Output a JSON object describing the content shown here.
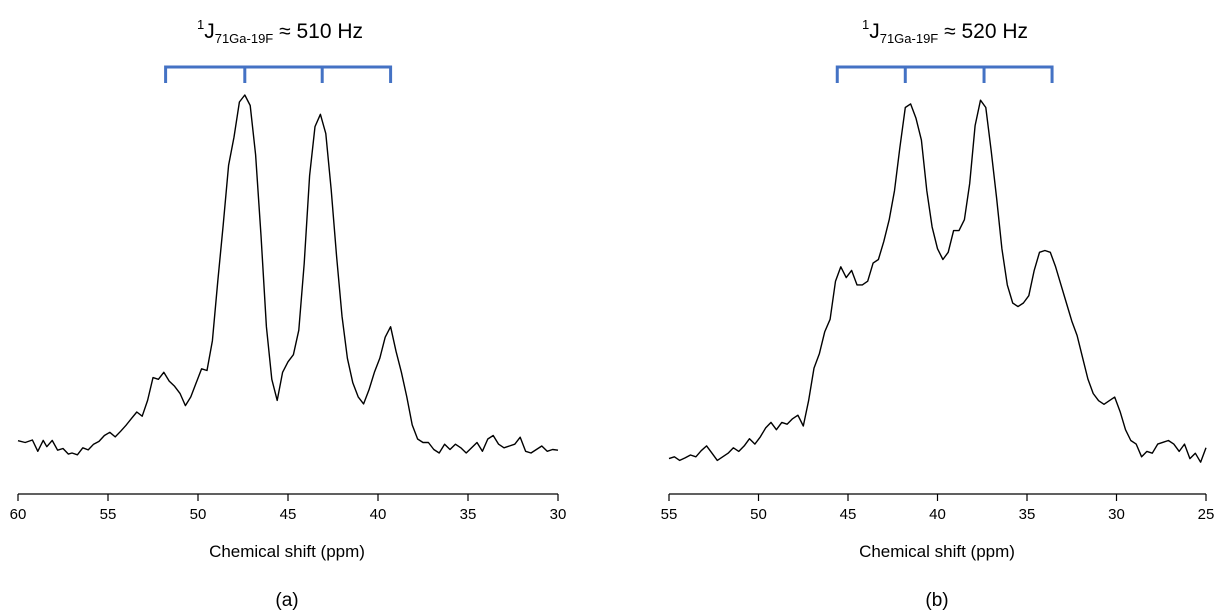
{
  "colors": {
    "trace": "#000000",
    "multiplet": "#4472c4",
    "axis": "#000000"
  },
  "chart_data": [
    {
      "type": "line",
      "panel_label": "(a)",
      "xlabel": "Chemical shift (ppm)",
      "ylabel": "",
      "xlim": [
        60,
        30
      ],
      "x_reversed": true,
      "xticks": [
        60,
        55,
        50,
        45,
        40,
        35,
        30
      ],
      "xtick_labels": [
        "60",
        "55",
        "50",
        "45",
        "40",
        "35",
        "30"
      ],
      "grid": false,
      "annotation": {
        "sup": "1",
        "main": "J",
        "sub": "71Ga-19F",
        "rest": " ≈ 510 Hz"
      },
      "multiplet_lines": [
        51.8,
        47.4,
        43.1,
        39.3
      ],
      "series": [
        {
          "x": [
            60.0,
            59.6,
            59.2,
            58.9,
            58.6,
            58.4,
            58.1,
            57.8,
            57.5,
            57.2,
            57.0,
            56.7,
            56.4,
            56.1,
            55.8,
            55.5,
            55.2,
            54.9,
            54.6,
            54.3,
            54.0,
            53.7,
            53.4,
            53.1,
            52.8,
            52.5,
            52.2,
            51.9,
            51.6,
            51.3,
            51.0,
            50.7,
            50.4,
            50.1,
            49.8,
            49.5,
            49.2,
            48.9,
            48.6,
            48.3,
            48.0,
            47.7,
            47.4,
            47.1,
            46.8,
            46.5,
            46.2,
            45.9,
            45.6,
            45.3,
            45.0,
            44.7,
            44.4,
            44.1,
            43.8,
            43.5,
            43.2,
            42.9,
            42.6,
            42.3,
            42.0,
            41.7,
            41.4,
            41.1,
            40.8,
            40.5,
            40.2,
            39.9,
            39.6,
            39.3,
            39.0,
            38.7,
            38.4,
            38.1,
            37.8,
            37.5,
            37.2,
            36.9,
            36.6,
            36.3,
            36.0,
            35.7,
            35.4,
            35.1,
            34.8,
            34.5,
            34.2,
            33.9,
            33.6,
            33.3,
            33.0,
            32.7,
            32.4,
            32.1,
            31.8,
            31.5,
            31.2,
            30.9,
            30.6,
            30.3,
            30.0
          ],
          "y": [
            1.5,
            1.0,
            1.7,
            -1.5,
            1.6,
            -0.2,
            1.6,
            -1.2,
            -0.7,
            -2.3,
            -2.0,
            -2.5,
            -0.5,
            -1.1,
            0.5,
            1.3,
            3.0,
            3.9,
            2.6,
            4.2,
            5.9,
            7.8,
            9.7,
            8.5,
            13.0,
            19.5,
            19.0,
            21.0,
            18.5,
            17.0,
            15.0,
            11.5,
            14.0,
            18.0,
            22.0,
            21.5,
            30.0,
            47.0,
            63.0,
            80.0,
            88.0,
            98.0,
            100.0,
            97.0,
            83.0,
            60.0,
            34.0,
            19.0,
            13.0,
            21.0,
            24.0,
            26.0,
            33.0,
            52.0,
            77.0,
            91.0,
            94.5,
            89.0,
            73.0,
            54.0,
            37.0,
            25.0,
            18.0,
            14.0,
            12.0,
            16.0,
            21.0,
            25.0,
            31.0,
            34.0,
            27.0,
            21.0,
            14.0,
            6.0,
            2.0,
            1.0,
            1.0,
            -1.0,
            -2.0,
            0.5,
            -1.0,
            0.5,
            -0.5,
            -2.0,
            -0.5,
            1.0,
            -1.5,
            2.0,
            3.0,
            0.5,
            -0.5,
            0.0,
            0.5,
            2.5,
            -1.5,
            -2.0,
            -1.0,
            0.0,
            -1.5,
            -1.0,
            -1.2
          ]
        }
      ]
    },
    {
      "type": "line",
      "panel_label": "(b)",
      "xlabel": "Chemical shift (ppm)",
      "ylabel": "",
      "xlim": [
        55,
        25
      ],
      "x_reversed": true,
      "xticks": [
        55,
        50,
        45,
        40,
        35,
        30,
        25
      ],
      "xtick_labels": [
        "55",
        "50",
        "45",
        "40",
        "35",
        "30",
        "25"
      ],
      "grid": false,
      "annotation": {
        "sup": "1",
        "main": "J",
        "sub": "71Ga-19F",
        "rest": " ≈ 520 Hz"
      },
      "multiplet_lines": [
        45.6,
        41.8,
        37.4,
        33.6
      ],
      "series": [
        {
          "x": [
            55.0,
            54.7,
            54.4,
            54.1,
            53.8,
            53.5,
            53.2,
            52.9,
            52.6,
            52.3,
            52.0,
            51.7,
            51.4,
            51.1,
            50.8,
            50.5,
            50.2,
            49.9,
            49.6,
            49.3,
            49.0,
            48.7,
            48.4,
            48.1,
            47.8,
            47.5,
            47.2,
            46.9,
            46.6,
            46.3,
            46.0,
            45.7,
            45.4,
            45.1,
            44.8,
            44.5,
            44.2,
            43.9,
            43.6,
            43.3,
            43.0,
            42.7,
            42.4,
            42.1,
            41.8,
            41.5,
            41.2,
            40.9,
            40.6,
            40.3,
            40.0,
            39.7,
            39.4,
            39.1,
            38.8,
            38.5,
            38.2,
            37.9,
            37.6,
            37.3,
            37.0,
            36.7,
            36.4,
            36.1,
            35.8,
            35.5,
            35.2,
            34.9,
            34.6,
            34.3,
            34.0,
            33.7,
            33.4,
            33.1,
            32.8,
            32.5,
            32.2,
            31.9,
            31.6,
            31.3,
            31.0,
            30.7,
            30.4,
            30.1,
            29.8,
            29.5,
            29.2,
            28.9,
            28.6,
            28.3,
            28.0,
            27.7,
            27.4,
            27.1,
            26.8,
            26.5,
            26.2,
            25.9,
            25.6,
            25.3,
            25.0
          ],
          "y": [
            -1.0,
            -0.5,
            -1.5,
            -0.8,
            0.0,
            -0.5,
            1.2,
            2.5,
            0.5,
            -1.5,
            -0.5,
            0.5,
            2.0,
            1.0,
            2.5,
            4.5,
            3.0,
            5.0,
            7.5,
            9.0,
            7.0,
            9.0,
            8.5,
            10.0,
            11.0,
            8.0,
            15.0,
            24.0,
            28.0,
            34.0,
            37.5,
            48.0,
            52.0,
            49.0,
            51.0,
            47.0,
            47.0,
            48.0,
            53.0,
            54.0,
            59.0,
            65.0,
            73.0,
            85.0,
            96.0,
            97.0,
            93.0,
            87.0,
            73.0,
            63.0,
            57.0,
            54.0,
            56.0,
            62.0,
            62.0,
            65.0,
            75.0,
            91.0,
            98.0,
            96.0,
            84.0,
            71.0,
            57.0,
            47.0,
            42.0,
            41.0,
            42.0,
            44.0,
            51.0,
            56.0,
            56.5,
            56.0,
            52.0,
            47.0,
            42.0,
            37.0,
            33.0,
            27.0,
            21.0,
            17.0,
            15.0,
            14.0,
            15.0,
            16.0,
            12.0,
            7.0,
            4.0,
            3.0,
            -0.5,
            1.0,
            0.5,
            3.0,
            3.5,
            4.0,
            3.0,
            1.0,
            3.0,
            -1.0,
            0.5,
            -2.0,
            2.0
          ]
        }
      ]
    }
  ]
}
